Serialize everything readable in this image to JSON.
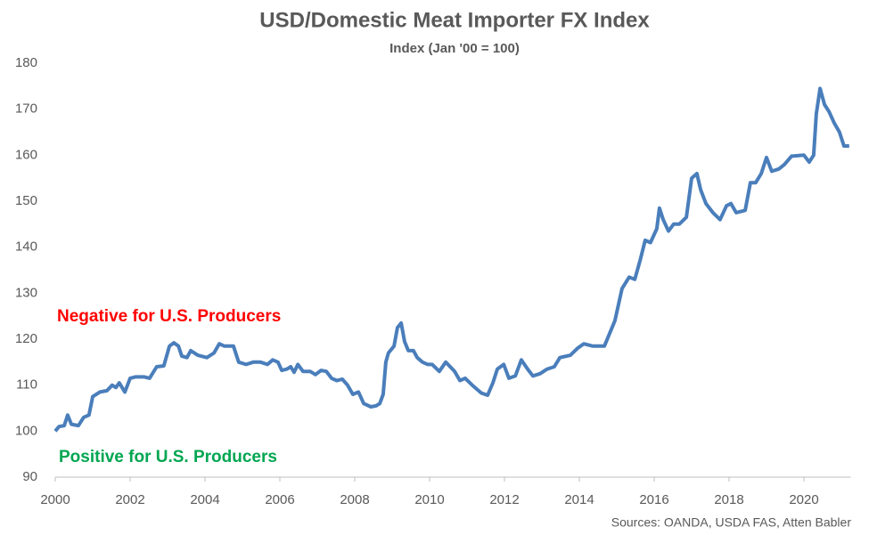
{
  "chart_data": {
    "type": "line",
    "title": "USD/Domestic Meat Importer FX Index",
    "subtitle": "Index (Jan '00 = 100)",
    "annotations": [
      {
        "text": "Negative for U.S. Producers",
        "color": "#ff0000"
      },
      {
        "text": "Positive for U.S. Producers",
        "color": "#00a651"
      }
    ],
    "source": "Sources: OANDA, USDA FAS, Atten Babler",
    "xlim": [
      2000,
      2021.25
    ],
    "xticks": [
      2000,
      2002,
      2004,
      2006,
      2008,
      2010,
      2012,
      2014,
      2016,
      2018,
      2020
    ],
    "ylim": [
      90,
      180
    ],
    "yticks": [
      90,
      100,
      110,
      120,
      130,
      140,
      150,
      160,
      170,
      180
    ],
    "grid": false,
    "x": [
      2000.0,
      2000.1,
      2000.24,
      2000.33,
      2000.43,
      2000.62,
      2000.76,
      2000.9,
      2001.0,
      2001.19,
      2001.38,
      2001.52,
      2001.62,
      2001.71,
      2001.86,
      2002.0,
      2002.14,
      2002.38,
      2002.52,
      2002.71,
      2002.9,
      2003.05,
      2003.17,
      2003.29,
      2003.38,
      2003.52,
      2003.62,
      2003.81,
      2004.05,
      2004.24,
      2004.38,
      2004.52,
      2004.76,
      2004.9,
      2005.1,
      2005.29,
      2005.48,
      2005.67,
      2005.81,
      2005.95,
      2006.05,
      2006.19,
      2006.29,
      2006.38,
      2006.48,
      2006.62,
      2006.81,
      2006.95,
      2007.1,
      2007.24,
      2007.38,
      2007.52,
      2007.67,
      2007.81,
      2007.95,
      2008.1,
      2008.24,
      2008.43,
      2008.57,
      2008.67,
      2008.76,
      2008.83,
      2008.9,
      2009.05,
      2009.14,
      2009.24,
      2009.33,
      2009.43,
      2009.57,
      2009.67,
      2009.81,
      2009.95,
      2010.07,
      2010.26,
      2010.43,
      2010.67,
      2010.81,
      2010.95,
      2011.14,
      2011.38,
      2011.55,
      2011.69,
      2011.81,
      2011.98,
      2012.12,
      2012.29,
      2012.45,
      2012.62,
      2012.76,
      2012.95,
      2013.14,
      2013.33,
      2013.48,
      2013.76,
      2013.95,
      2014.12,
      2014.36,
      2014.67,
      2014.95,
      2015.14,
      2015.33,
      2015.48,
      2015.62,
      2015.76,
      2015.9,
      2016.07,
      2016.14,
      2016.24,
      2016.38,
      2016.52,
      2016.67,
      2016.86,
      2017.0,
      2017.14,
      2017.24,
      2017.38,
      2017.57,
      2017.76,
      2017.93,
      2018.05,
      2018.19,
      2018.43,
      2018.57,
      2018.71,
      2018.86,
      2019.0,
      2019.14,
      2019.33,
      2019.48,
      2019.67,
      2020.0,
      2020.14,
      2020.26,
      2020.33,
      2020.43,
      2020.55,
      2020.67,
      2020.81,
      2020.95,
      2021.07,
      2021.21
    ],
    "series": [
      {
        "name": "USD/Domestic Meat Importer FX Index",
        "color": "#4a7ebb",
        "values": [
          100,
          101,
          101.2,
          103.5,
          101.5,
          101.2,
          103,
          103.5,
          107.5,
          108.5,
          108.8,
          110,
          109.5,
          110.5,
          108.5,
          111.5,
          111.8,
          111.8,
          111.5,
          114,
          114.2,
          118.5,
          119.2,
          118.5,
          116.3,
          116,
          117.5,
          116.5,
          116,
          117,
          119,
          118.5,
          118.5,
          115,
          114.5,
          115,
          115,
          114.5,
          115.5,
          115,
          113.2,
          113.5,
          114,
          112.8,
          114.5,
          113,
          113,
          112.3,
          113.2,
          113,
          111.5,
          111,
          111.3,
          110,
          108,
          108.5,
          106,
          105.3,
          105.5,
          106,
          108,
          115,
          117,
          118.5,
          122.5,
          123.5,
          119.5,
          117.5,
          117.5,
          116,
          115,
          114.5,
          114.5,
          113,
          115,
          113,
          111,
          111.5,
          110,
          108.3,
          107.8,
          110.5,
          113.5,
          114.5,
          111.5,
          112,
          115.5,
          113.5,
          112,
          112.5,
          113.5,
          114,
          116,
          116.5,
          118,
          119,
          118.5,
          118.5,
          124,
          131,
          133.5,
          133,
          137,
          141.5,
          141,
          144,
          148.5,
          146,
          143.5,
          145,
          145,
          146.5,
          155,
          156,
          152.5,
          149.5,
          147.5,
          146,
          149,
          149.5,
          147.5,
          148,
          154,
          154,
          156,
          159.5,
          156.5,
          157,
          158,
          159.8,
          160,
          158.5,
          160,
          169,
          174.5,
          171,
          169.5,
          167,
          165,
          162,
          162
        ]
      }
    ]
  }
}
